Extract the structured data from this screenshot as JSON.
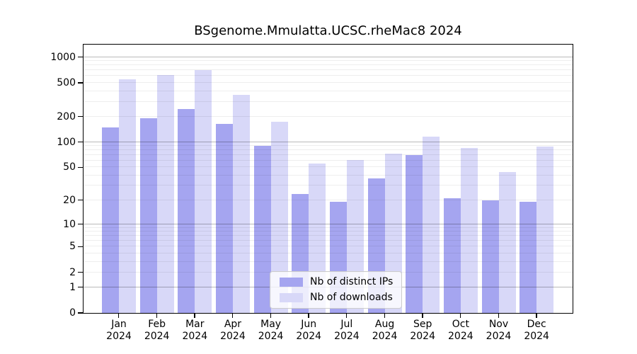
{
  "chart_data": {
    "type": "bar",
    "title": "BSgenome.Mmulatta.UCSC.rheMac8 2024",
    "categories": [
      "Jan",
      "Feb",
      "Mar",
      "Apr",
      "May",
      "Jun",
      "Jul",
      "Aug",
      "Sep",
      "Oct",
      "Nov",
      "Dec"
    ],
    "category_year": "2024",
    "series": [
      {
        "name": "Nb of distinct IPs",
        "color": "#a5a5f0",
        "values": [
          150,
          190,
          245,
          165,
          90,
          24,
          19,
          37,
          70,
          21,
          20,
          19
        ]
      },
      {
        "name": "Nb of downloads",
        "color": "#d8d8f8",
        "values": [
          550,
          615,
          710,
          360,
          175,
          56,
          61,
          73,
          115,
          85,
          44,
          89
        ]
      }
    ],
    "yscale": "log1p",
    "ylim": [
      0,
      1400
    ],
    "y_ticks": [
      0,
      1,
      2,
      5,
      10,
      20,
      50,
      100,
      200,
      500,
      1000
    ],
    "y_major_gridlines": [
      1,
      10,
      100,
      1000
    ],
    "grid": "horizontal",
    "legend_position": "lower-center-inside",
    "xlabel": "",
    "ylabel": ""
  }
}
